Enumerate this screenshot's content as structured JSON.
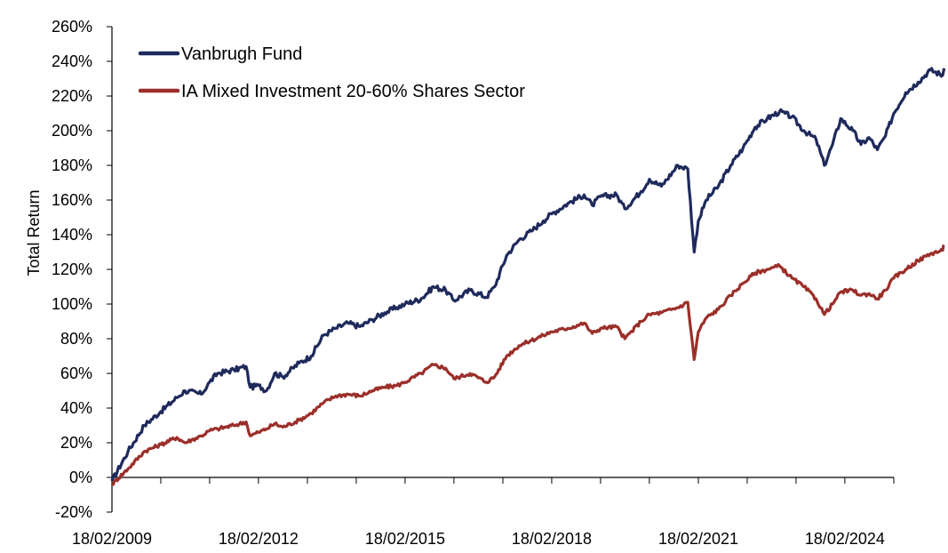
{
  "chart_data": {
    "type": "line",
    "title": "",
    "xlabel": "",
    "ylabel": "Total Return",
    "ylim": [
      -20,
      260
    ],
    "y_ticks": [
      -20,
      0,
      20,
      40,
      60,
      80,
      100,
      120,
      140,
      160,
      180,
      200,
      220,
      240,
      260
    ],
    "y_tick_labels": [
      "-20%",
      "0%",
      "20%",
      "40%",
      "60%",
      "80%",
      "100%",
      "120%",
      "140%",
      "160%",
      "180%",
      "200%",
      "220%",
      "240%",
      "260%"
    ],
    "x_range": [
      "18/02/2009",
      "18/02/2025"
    ],
    "x_ticks": [
      "18/02/2009",
      "18/02/2012",
      "18/02/2015",
      "18/02/2018",
      "18/02/2021",
      "18/02/2024"
    ],
    "grid": false,
    "legend_position": "top-left",
    "series": [
      {
        "name": "Vanbrugh Fund",
        "color": "#1f2a5c",
        "points": [
          [
            "18/02/2009",
            -2
          ],
          [
            "18/06/2009",
            15
          ],
          [
            "18/10/2009",
            30
          ],
          [
            "18/02/2010",
            38
          ],
          [
            "18/06/2010",
            46
          ],
          [
            "18/08/2010",
            50
          ],
          [
            "18/12/2010",
            48
          ],
          [
            "18/02/2011",
            55
          ],
          [
            "18/04/2011",
            60
          ],
          [
            "18/08/2011",
            62
          ],
          [
            "18/11/2011",
            64
          ],
          [
            "18/12/2011",
            52
          ],
          [
            "18/02/2012",
            53
          ],
          [
            "18/04/2012",
            50
          ],
          [
            "18/06/2012",
            60
          ],
          [
            "18/08/2012",
            58
          ],
          [
            "18/12/2012",
            66
          ],
          [
            "18/03/2013",
            70
          ],
          [
            "18/06/2013",
            82
          ],
          [
            "18/09/2013",
            86
          ],
          [
            "18/12/2013",
            89
          ],
          [
            "18/03/2014",
            87
          ],
          [
            "18/06/2014",
            91
          ],
          [
            "18/09/2014",
            95
          ],
          [
            "18/12/2014",
            98
          ],
          [
            "18/02/2015",
            100
          ],
          [
            "18/06/2015",
            103
          ],
          [
            "18/09/2015",
            110
          ],
          [
            "18/12/2015",
            108
          ],
          [
            "18/02/2016",
            102
          ],
          [
            "18/06/2016",
            108
          ],
          [
            "18/10/2016",
            104
          ],
          [
            "18/12/2016",
            110
          ],
          [
            "18/03/2017",
            128
          ],
          [
            "18/06/2017",
            137
          ],
          [
            "18/09/2017",
            142
          ],
          [
            "18/12/2017",
            148
          ],
          [
            "18/02/2018",
            152
          ],
          [
            "18/06/2018",
            158
          ],
          [
            "18/10/2018",
            163
          ],
          [
            "18/12/2018",
            157
          ],
          [
            "18/02/2019",
            162
          ],
          [
            "18/06/2019",
            163
          ],
          [
            "18/08/2019",
            155
          ],
          [
            "18/12/2019",
            165
          ],
          [
            "18/02/2020",
            172
          ],
          [
            "18/05/2020",
            168
          ],
          [
            "18/09/2020",
            180
          ],
          [
            "01/12/2020",
            178
          ],
          [
            "18/01/2021",
            130
          ],
          [
            "18/02/2021",
            148
          ],
          [
            "18/04/2021",
            160
          ],
          [
            "18/07/2021",
            168
          ],
          [
            "18/10/2021",
            180
          ],
          [
            "18/01/2022",
            190
          ],
          [
            "18/04/2022",
            202
          ],
          [
            "18/07/2022",
            207
          ],
          [
            "18/10/2022",
            211
          ],
          [
            "18/01/2023",
            208
          ],
          [
            "18/04/2023",
            200
          ],
          [
            "18/07/2023",
            195
          ],
          [
            "18/09/2023",
            180
          ],
          [
            "18/11/2023",
            192
          ],
          [
            "18/01/2024",
            207
          ],
          [
            "18/04/2024",
            200
          ],
          [
            "18/06/2024",
            192
          ],
          [
            "18/08/2024",
            196
          ],
          [
            "18/10/2024",
            189
          ],
          [
            "18/12/2024",
            197
          ],
          [
            "18/02/2025",
            210
          ],
          [
            "18/05/2025",
            222
          ],
          [
            "18/08/2025",
            228
          ],
          [
            "18/11/2025",
            235
          ],
          [
            "18/02/2026",
            232
          ],
          [
            "01/03/2026",
            236
          ]
        ]
      },
      {
        "name": "IA Mixed Investment 20-60% Shares Sector",
        "color": "#9b2f2a",
        "points": [
          [
            "18/02/2009",
            -4
          ],
          [
            "18/06/2009",
            5
          ],
          [
            "18/10/2009",
            15
          ],
          [
            "18/02/2010",
            19
          ],
          [
            "18/06/2010",
            23
          ],
          [
            "18/08/2010",
            20
          ],
          [
            "18/12/2010",
            24
          ],
          [
            "18/02/2011",
            27
          ],
          [
            "18/04/2011",
            28
          ],
          [
            "18/08/2011",
            30
          ],
          [
            "18/11/2011",
            32
          ],
          [
            "18/12/2011",
            24
          ],
          [
            "18/02/2012",
            26
          ],
          [
            "18/04/2012",
            28
          ],
          [
            "18/06/2012",
            31
          ],
          [
            "18/08/2012",
            29
          ],
          [
            "18/12/2012",
            33
          ],
          [
            "18/03/2013",
            37
          ],
          [
            "18/06/2013",
            43
          ],
          [
            "18/09/2013",
            47
          ],
          [
            "18/12/2013",
            48
          ],
          [
            "18/03/2014",
            47
          ],
          [
            "18/06/2014",
            50
          ],
          [
            "18/09/2014",
            52
          ],
          [
            "18/12/2014",
            53
          ],
          [
            "18/02/2015",
            55
          ],
          [
            "18/06/2015",
            60
          ],
          [
            "18/09/2015",
            65
          ],
          [
            "18/12/2015",
            63
          ],
          [
            "18/02/2016",
            57
          ],
          [
            "18/06/2016",
            60
          ],
          [
            "18/10/2016",
            55
          ],
          [
            "18/12/2016",
            58
          ],
          [
            "18/03/2017",
            70
          ],
          [
            "18/06/2017",
            76
          ],
          [
            "18/09/2017",
            79
          ],
          [
            "18/12/2017",
            82
          ],
          [
            "18/02/2018",
            84
          ],
          [
            "18/06/2018",
            86
          ],
          [
            "18/10/2018",
            89
          ],
          [
            "18/12/2018",
            83
          ],
          [
            "18/02/2019",
            86
          ],
          [
            "18/06/2019",
            87
          ],
          [
            "18/08/2019",
            80
          ],
          [
            "18/12/2019",
            90
          ],
          [
            "18/02/2020",
            94
          ],
          [
            "18/05/2020",
            95
          ],
          [
            "18/09/2020",
            98
          ],
          [
            "01/12/2020",
            101
          ],
          [
            "18/01/2021",
            68
          ],
          [
            "18/02/2021",
            84
          ],
          [
            "18/04/2021",
            92
          ],
          [
            "18/07/2021",
            97
          ],
          [
            "18/10/2021",
            105
          ],
          [
            "18/01/2022",
            112
          ],
          [
            "18/04/2022",
            118
          ],
          [
            "18/07/2022",
            120
          ],
          [
            "18/10/2022",
            122
          ],
          [
            "18/01/2023",
            115
          ],
          [
            "18/04/2023",
            110
          ],
          [
            "18/07/2023",
            103
          ],
          [
            "18/09/2023",
            94
          ],
          [
            "18/11/2023",
            100
          ],
          [
            "18/01/2024",
            107
          ],
          [
            "18/04/2024",
            108
          ],
          [
            "18/06/2024",
            105
          ],
          [
            "18/08/2024",
            106
          ],
          [
            "18/10/2024",
            103
          ],
          [
            "18/12/2024",
            108
          ],
          [
            "18/02/2025",
            115
          ],
          [
            "18/05/2025",
            120
          ],
          [
            "18/08/2025",
            125
          ],
          [
            "18/11/2025",
            129
          ],
          [
            "18/02/2026",
            131
          ],
          [
            "01/03/2026",
            134
          ]
        ]
      }
    ]
  }
}
